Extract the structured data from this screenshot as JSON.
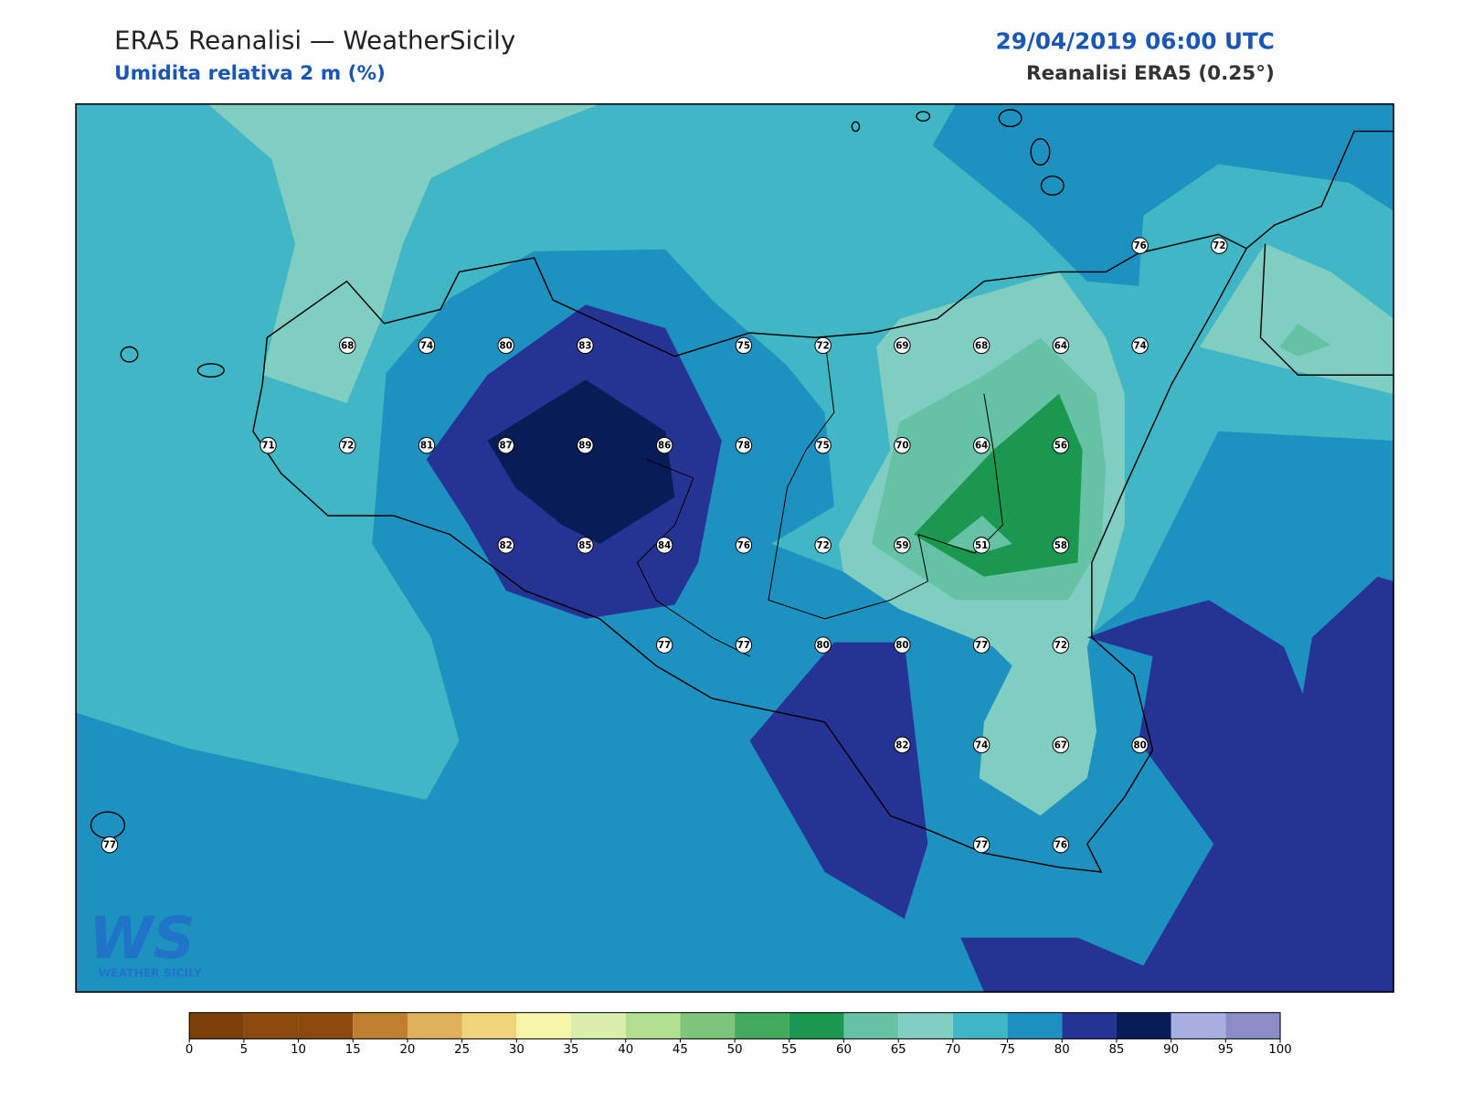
{
  "header": {
    "title": "ERA5 Reanalisi — WeatherSicily",
    "subtitle": "Umidita relativa 2 m (%)",
    "datetime": "29/04/2019 06:00 UTC",
    "source": "Reanalisi ERA5 (0.25°)"
  },
  "stations": {
    "rows": [
      [
        null,
        null,
        null,
        null,
        null,
        null,
        null,
        null,
        null,
        null,
        null,
        null,
        null,
        76,
        72
      ],
      [
        null,
        null,
        null,
        68,
        74,
        80,
        83,
        null,
        75,
        72,
        69,
        68,
        64,
        74,
        null
      ],
      [
        null,
        null,
        71,
        72,
        81,
        87,
        89,
        86,
        78,
        75,
        70,
        64,
        56,
        null,
        null
      ],
      [
        null,
        null,
        null,
        null,
        null,
        82,
        85,
        84,
        76,
        72,
        59,
        51,
        58,
        null,
        null
      ],
      [
        null,
        null,
        null,
        null,
        null,
        null,
        null,
        77,
        77,
        80,
        80,
        77,
        72,
        null,
        null
      ],
      [
        null,
        null,
        null,
        null,
        null,
        null,
        null,
        null,
        null,
        null,
        82,
        74,
        67,
        80,
        null
      ],
      [
        77,
        null,
        null,
        null,
        null,
        null,
        null,
        null,
        null,
        null,
        null,
        77,
        76,
        null,
        null
      ]
    ]
  },
  "colorbar": {
    "ticks": [
      0,
      5,
      10,
      15,
      20,
      25,
      30,
      35,
      40,
      45,
      50,
      55,
      60,
      65,
      70,
      75,
      80,
      85,
      90,
      95,
      100
    ],
    "colors": [
      "#7b3f0a",
      "#8c4a10",
      "#8c4a10",
      "#bf7f2e",
      "#dfb05a",
      "#f0d47c",
      "#f6f6a8",
      "#d9eeaa",
      "#b0df90",
      "#7cc57a",
      "#43a95c",
      "#1a9850",
      "#66c2a5",
      "#80cdc1",
      "#41b6c4",
      "#1d91c0",
      "#253494",
      "#081d58",
      "#a6afe0",
      "#8c8cc8"
    ]
  },
  "logo": {
    "mark": "WS",
    "text": "WEATHER SICILY"
  }
}
